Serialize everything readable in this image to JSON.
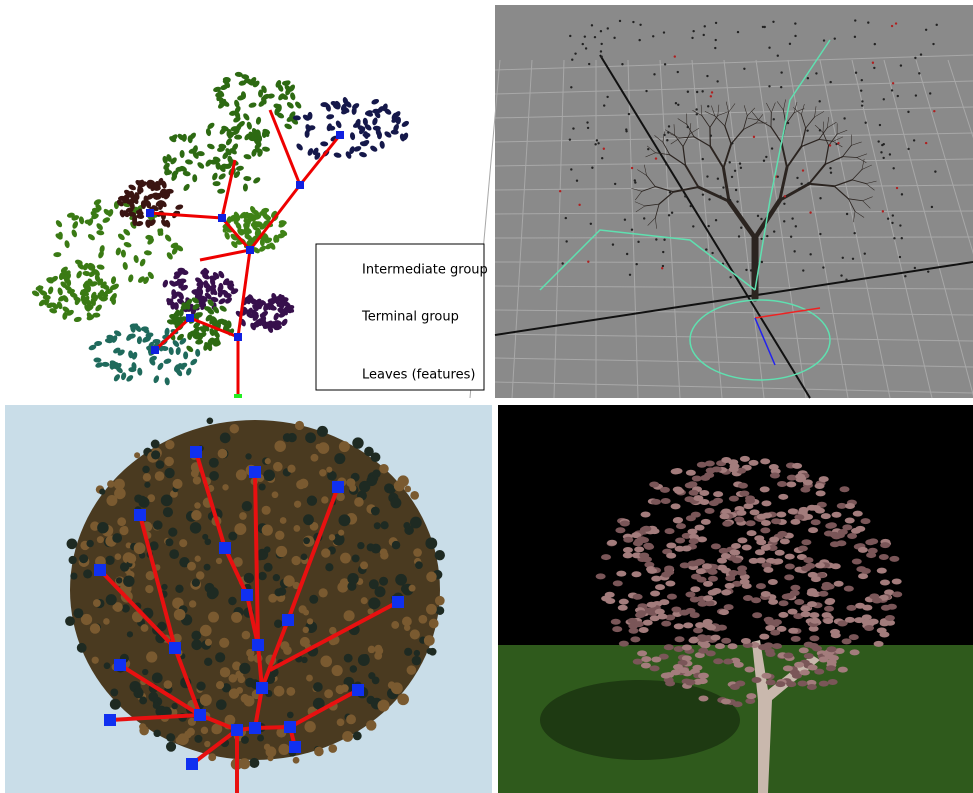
{
  "legend": {
    "items": [
      "Intermediate group",
      "Terminal group",
      "Leaves (features)"
    ]
  }
}
